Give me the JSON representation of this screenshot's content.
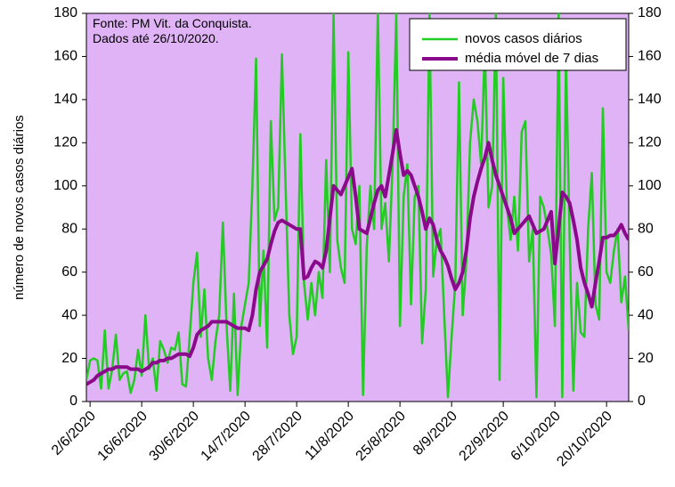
{
  "chart_data": {
    "type": "line",
    "annotations": [
      "Fonte: PM Vit. da Conquista.",
      "Dados até 26/10/2020."
    ],
    "y_label": "número de novos casos diários",
    "categories": [
      null,
      "2/6/2020",
      null,
      null,
      null,
      null,
      null,
      null,
      null,
      null,
      null,
      null,
      null,
      null,
      null,
      "16/6/2020",
      null,
      null,
      null,
      null,
      null,
      null,
      null,
      null,
      null,
      null,
      null,
      null,
      null,
      "30/6/2020",
      null,
      null,
      null,
      null,
      null,
      null,
      null,
      null,
      null,
      null,
      null,
      null,
      null,
      "14/7/2020",
      null,
      null,
      null,
      null,
      null,
      null,
      null,
      null,
      null,
      null,
      null,
      null,
      null,
      "28/7/2020",
      null,
      null,
      null,
      null,
      null,
      null,
      null,
      null,
      null,
      null,
      null,
      null,
      null,
      "11/8/2020",
      null,
      null,
      null,
      null,
      null,
      null,
      null,
      null,
      null,
      null,
      null,
      null,
      null,
      "25/8/2020",
      null,
      null,
      null,
      null,
      null,
      null,
      null,
      null,
      null,
      null,
      null,
      null,
      null,
      "8/9/2020",
      null,
      null,
      null,
      null,
      null,
      null,
      null,
      null,
      null,
      null,
      null,
      null,
      null,
      "22/9/2020",
      null,
      null,
      null,
      null,
      null,
      null,
      null,
      null,
      null,
      null,
      null,
      null,
      null,
      "6/10/2020",
      null,
      null,
      null,
      null,
      null,
      null,
      null,
      null,
      null,
      null,
      null,
      null,
      null,
      "20/10/2020",
      null,
      null,
      null,
      null,
      null,
      null
    ],
    "series": [
      {
        "name": "novos casos diários",
        "color": "#22cc22",
        "width": 2.5,
        "values": [
          10,
          19,
          20,
          19,
          6,
          33,
          6,
          15,
          31,
          10,
          13,
          14,
          4,
          10,
          24,
          12,
          40,
          15,
          20,
          5,
          28,
          24,
          18,
          25,
          24,
          32,
          8,
          7,
          30,
          55,
          69,
          30,
          52,
          20,
          10,
          28,
          40,
          83,
          35,
          5,
          50,
          3,
          35,
          45,
          55,
          100,
          159,
          35,
          70,
          25,
          130,
          84,
          90,
          161,
          100,
          40,
          22,
          30,
          124,
          55,
          38,
          55,
          40,
          60,
          48,
          112,
          60,
          180,
          75,
          62,
          55,
          162,
          80,
          73,
          100,
          3,
          72,
          100,
          80,
          182,
          80,
          92,
          65,
          110,
          180,
          35,
          95,
          110,
          45,
          95,
          100,
          27,
          52,
          180,
          58,
          75,
          80,
          40,
          2,
          30,
          55,
          148,
          40,
          65,
          120,
          140,
          130,
          110,
          165,
          90,
          100,
          180,
          10,
          150,
          90,
          75,
          95,
          70,
          125,
          130,
          65,
          80,
          2,
          95,
          90,
          80,
          68,
          35,
          180,
          2,
          160,
          75,
          5,
          55,
          32,
          30,
          80,
          106,
          45,
          38,
          136,
          60,
          55,
          70,
          80,
          46,
          58,
          33
        ]
      },
      {
        "name": "média móvel de 7 dias",
        "color": "#8b0a8b",
        "width": 4,
        "values": [
          8,
          9,
          10,
          12,
          13,
          14,
          15,
          15,
          16,
          16,
          16,
          16,
          15,
          15,
          15,
          14,
          15,
          16,
          18,
          18,
          19,
          19,
          20,
          20,
          21,
          22,
          22,
          22,
          21,
          25,
          31,
          33,
          34,
          35,
          37,
          37,
          37,
          37,
          37,
          36,
          35,
          34,
          34,
          34,
          33,
          40,
          52,
          60,
          63,
          66,
          73,
          79,
          83,
          84,
          83,
          82,
          81,
          80,
          80,
          57,
          58,
          62,
          65,
          64,
          62,
          70,
          85,
          100,
          98,
          96,
          100,
          104,
          108,
          95,
          80,
          79,
          78,
          85,
          92,
          98,
          100,
          95,
          105,
          115,
          126,
          115,
          105,
          107,
          105,
          100,
          95,
          88,
          80,
          85,
          82,
          75,
          70,
          67,
          63,
          57,
          52,
          55,
          60,
          70,
          85,
          95,
          102,
          108,
          113,
          120,
          112,
          105,
          100,
          95,
          90,
          85,
          78,
          80,
          82,
          84,
          86,
          82,
          78,
          79,
          80,
          84,
          88,
          64,
          80,
          97,
          95,
          92,
          84,
          75,
          62,
          55,
          50,
          44,
          55,
          65,
          76,
          76,
          77,
          77,
          79,
          82,
          78,
          75
        ]
      }
    ],
    "ylim": [
      0,
      180
    ],
    "yticks": [
      0,
      20,
      40,
      60,
      80,
      100,
      120,
      140,
      160,
      180
    ],
    "y2lim": [
      0,
      180
    ],
    "y2ticks": [
      0,
      20,
      40,
      60,
      80,
      100,
      120,
      140,
      160,
      180
    ],
    "background": "#dfb3f5",
    "legend": "upper right"
  }
}
